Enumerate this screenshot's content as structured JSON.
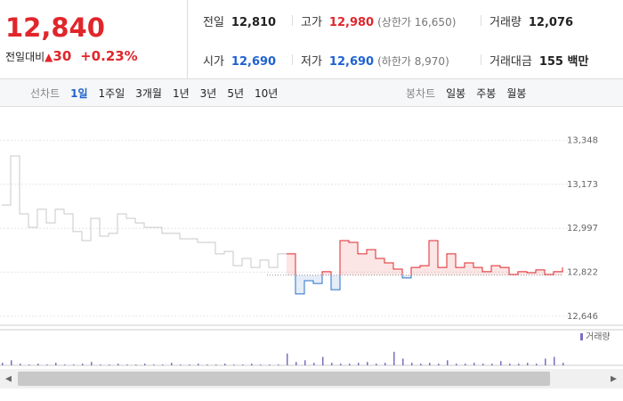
{
  "header": {
    "price": "12,840",
    "change_label": "전일대비",
    "change_arrow": "▲",
    "change": "30",
    "change_rate": "+0.23%",
    "stats": [
      [
        {
          "label": "전일",
          "value": "12,810",
          "color": "#222"
        },
        {
          "label": "고가",
          "value": "12,980",
          "note": "(상한가 16,650)",
          "color": "#e0262b"
        },
        {
          "label": "거래량",
          "value": "12,076",
          "color": "#222"
        }
      ],
      [
        {
          "label": "시가",
          "value": "12,690",
          "color": "#1f62d0"
        },
        {
          "label": "저가",
          "value": "12,690",
          "note": "(하한가 8,970)",
          "color": "#1f62d0"
        },
        {
          "label": "거래대금",
          "value": "155 백만",
          "color": "#222"
        }
      ]
    ]
  },
  "tabs": {
    "line_label": "선차트",
    "line": [
      "1일",
      "1주일",
      "3개월",
      "1년",
      "3년",
      "5년",
      "10년"
    ],
    "candle_label": "봉차트",
    "candle": [
      "일봉",
      "주봉",
      "월봉"
    ]
  },
  "chart_data": {
    "type": "line",
    "ylim": [
      12610,
      13400
    ],
    "yticks": [
      {
        "value": 13348,
        "label": "13,348"
      },
      {
        "value": 13173,
        "label": "13,173"
      },
      {
        "value": 12997,
        "label": "12,997"
      },
      {
        "value": 12822,
        "label": "12,822"
      },
      {
        "value": 12646,
        "label": "12,646"
      }
    ],
    "reference": 12810,
    "down_color": "#2a6fc9",
    "series": [
      {
        "color": "#c8c8c8",
        "values": [
          13090,
          13286,
          13055,
          13001,
          13073,
          13019,
          13073,
          13055,
          12984,
          12948,
          13037,
          12966,
          12977,
          13055,
          13037,
          13019,
          13001,
          13001,
          12977,
          12977,
          12955,
          12955,
          12941,
          12941,
          12895,
          12905,
          12848,
          12877,
          12841,
          12870,
          12841,
          12895,
          12895,
          null,
          null,
          null,
          null,
          null,
          null,
          null,
          null,
          null,
          null,
          null,
          null,
          null,
          null,
          null,
          null,
          null,
          null,
          null,
          null,
          null,
          null,
          null,
          null,
          null,
          null,
          null,
          null,
          null,
          null,
          null
        ]
      },
      {
        "color": "#e0262b",
        "values": [
          null,
          null,
          null,
          null,
          null,
          null,
          null,
          null,
          null,
          null,
          null,
          null,
          null,
          null,
          null,
          null,
          null,
          null,
          null,
          null,
          null,
          null,
          null,
          null,
          null,
          null,
          null,
          null,
          null,
          null,
          null,
          null,
          12895,
          12735,
          12788,
          12777,
          12824,
          12752,
          12948,
          12941,
          12895,
          12912,
          12877,
          12859,
          12834,
          12799,
          12841,
          12848,
          12948,
          12841,
          12895,
          12841,
          12859,
          12841,
          12824,
          12848,
          12841,
          12813,
          12824,
          12820,
          12831,
          12813,
          12824,
          12841
        ]
      }
    ],
    "volume": {
      "label": "거래량",
      "color": "#7b6fc0",
      "ylim": [
        0,
        40
      ],
      "values": [
        3,
        6,
        2,
        1,
        2,
        1,
        3,
        1,
        1,
        2,
        4,
        1,
        1,
        2,
        1,
        1,
        2,
        1,
        1,
        3,
        1,
        1,
        2,
        1,
        1,
        2,
        1,
        1,
        2,
        1,
        1,
        1,
        14,
        4,
        6,
        3,
        10,
        3,
        2,
        2,
        3,
        4,
        2,
        3,
        16,
        8,
        3,
        2,
        3,
        2,
        6,
        2,
        2,
        3,
        2,
        2,
        5,
        2,
        2,
        3,
        2,
        8,
        10,
        3
      ]
    }
  }
}
